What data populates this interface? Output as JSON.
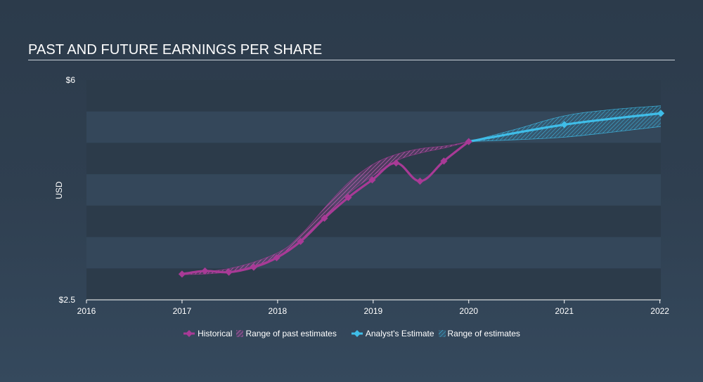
{
  "title": "PAST AND FUTURE EARNINGS PER SHARE",
  "colors": {
    "historical": "#a83a96",
    "estimate": "#3fbde8",
    "band_dark": "#2c3b4a",
    "band_light": "#34475a",
    "axis": "#ffffff"
  },
  "legend": {
    "historical": "Historical",
    "past_range": "Range of past estimates",
    "analyst": "Analyst's Estimate",
    "future_range": "Range of estimates"
  },
  "chart_data": {
    "type": "line",
    "title": "PAST AND FUTURE EARNINGS PER SHARE",
    "ylabel": "USD",
    "xlabel": "",
    "ylim": [
      2.5,
      6
    ],
    "xlim": [
      2016,
      2022.01
    ],
    "y_tick_labels": [
      "$6",
      "$2.5"
    ],
    "y_ticks": [
      6,
      2.5
    ],
    "x_tick_labels": [
      "2016",
      "2017",
      "2018",
      "2019",
      "2020",
      "2021",
      "2022"
    ],
    "x_ticks": [
      2016,
      2017,
      2018,
      2019,
      2020,
      2021,
      2022
    ],
    "series": [
      {
        "name": "Historical",
        "x": [
          2017.0,
          2017.24,
          2017.49,
          2017.75,
          2017.99,
          2018.24,
          2018.49,
          2018.74,
          2018.99,
          2019.24,
          2019.49,
          2019.74,
          2020.0
        ],
        "y": [
          2.91,
          2.96,
          2.94,
          3.02,
          3.17,
          3.43,
          3.8,
          4.13,
          4.41,
          4.68,
          4.39,
          4.71,
          5.02
        ]
      },
      {
        "name": "Analyst's Estimate",
        "x": [
          2020.0,
          2021.0,
          2022.01
        ],
        "y": [
          5.02,
          5.29,
          5.47
        ]
      }
    ],
    "past_estimate_range": {
      "name": "Range of past estimates",
      "x": [
        2017.0,
        2017.5,
        2018.0,
        2018.25,
        2018.5,
        2018.75,
        2019.0,
        2019.25,
        2019.5,
        2019.75,
        2020.0
      ],
      "upper": [
        2.93,
        3.0,
        3.25,
        3.55,
        3.98,
        4.38,
        4.66,
        4.82,
        4.91,
        4.95,
        5.02
      ],
      "lower": [
        2.9,
        2.95,
        3.18,
        3.44,
        3.83,
        4.2,
        4.48,
        4.72,
        4.84,
        4.92,
        5.02
      ]
    },
    "future_estimate_range": {
      "name": "Range of estimates",
      "x": [
        2020.0,
        2020.5,
        2021.0,
        2021.5,
        2022.01
      ],
      "upper": [
        5.02,
        5.22,
        5.43,
        5.53,
        5.59
      ],
      "lower": [
        5.02,
        5.05,
        5.09,
        5.17,
        5.26
      ]
    }
  }
}
